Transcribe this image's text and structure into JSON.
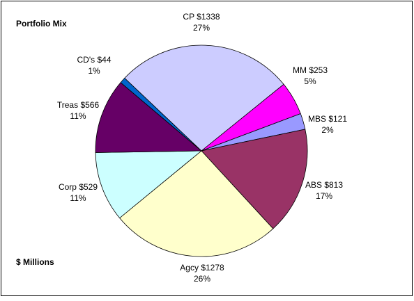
{
  "chart_data": {
    "type": "pie",
    "title": "Portfolio Mix",
    "unit_note": "$ Millions",
    "categories": [
      "CP",
      "MM",
      "MBS",
      "ABS",
      "Agcy",
      "Corp",
      "Treas",
      "CD's"
    ],
    "values": [
      1338,
      253,
      121,
      813,
      1278,
      529,
      566,
      44
    ],
    "value_labels": [
      "$1338",
      "$253",
      "$121",
      "$813",
      "$1278",
      "$529",
      "$566",
      "$44"
    ],
    "percents": [
      27,
      5,
      2,
      17,
      26,
      11,
      11,
      1
    ],
    "percent_labels": [
      "27%",
      "5%",
      "2%",
      "17%",
      "26%",
      "11%",
      "11%",
      "1%"
    ],
    "colors": [
      "#ccccff",
      "#ff00ff",
      "#9999ff",
      "#993366",
      "#ffffcc",
      "#ccffff",
      "#660066",
      "#0066cc"
    ]
  }
}
